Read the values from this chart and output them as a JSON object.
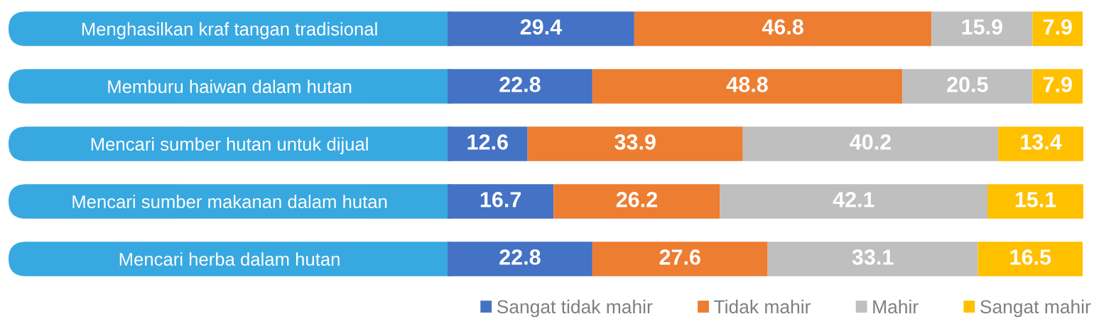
{
  "chart_data": {
    "type": "bar",
    "orientation": "horizontal",
    "stacked": true,
    "categories": [
      "Menghasilkan kraf tangan tradisional",
      "Memburu haiwan dalam hutan",
      "Mencari sumber hutan untuk dijual",
      "Mencari sumber makanan dalam hutan",
      "Mencari herba dalam hutan"
    ],
    "series": [
      {
        "name": "Sangat tidak mahir",
        "color": "#4472c4",
        "values": [
          29.4,
          22.8,
          12.6,
          16.7,
          22.8
        ]
      },
      {
        "name": "Tidak mahir",
        "color": "#ed7d31",
        "values": [
          46.8,
          48.8,
          33.9,
          26.2,
          27.6
        ]
      },
      {
        "name": "Mahir",
        "color": "#bfbfbf",
        "values": [
          15.9,
          20.5,
          40.2,
          42.1,
          33.1
        ]
      },
      {
        "name": "Sangat mahir",
        "color": "#ffc000",
        "values": [
          7.9,
          7.9,
          13.4,
          15.1,
          16.5
        ]
      }
    ],
    "data_labels": true,
    "legend": "bottom",
    "tick_labels": "y"
  }
}
